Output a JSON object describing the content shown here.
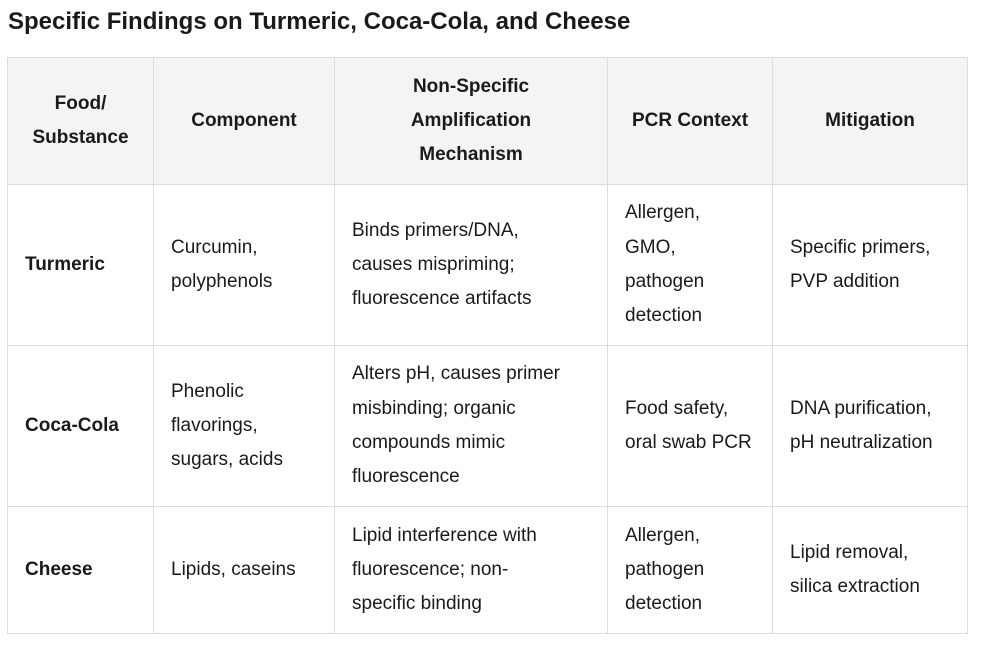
{
  "title": "Specific Findings on Turmeric, Coca-Cola, and Cheese",
  "columns": [
    [
      "Food/",
      "Substance"
    ],
    [
      "Component"
    ],
    [
      "Non-Specific",
      "Amplification",
      "Mechanism"
    ],
    [
      "PCR Context"
    ],
    [
      "Mitigation"
    ]
  ],
  "rows": [
    {
      "food": [
        "Turmeric"
      ],
      "component": [
        "Curcumin,",
        "polyphenols"
      ],
      "mechanism": [
        "Binds primers/DNA,",
        "causes mispriming;",
        "fluorescence artifacts"
      ],
      "context": [
        "Allergen,",
        "GMO,",
        "pathogen",
        "detection"
      ],
      "mitigation": [
        "Specific primers,",
        "PVP addition"
      ]
    },
    {
      "food": [
        "Coca-Cola"
      ],
      "component": [
        "Phenolic",
        "flavorings,",
        "sugars, acids"
      ],
      "mechanism": [
        "Alters pH, causes primer",
        "misbinding; organic",
        "compounds mimic",
        "fluorescence"
      ],
      "context": [
        "Food safety,",
        "oral swab PCR"
      ],
      "mitigation": [
        "DNA purification,",
        "pH neutralization"
      ]
    },
    {
      "food": [
        "Cheese"
      ],
      "component": [
        "Lipids, caseins"
      ],
      "mechanism": [
        "Lipid interference with",
        "fluorescence; non-",
        "specific binding"
      ],
      "context": [
        "Allergen,",
        "pathogen",
        "detection"
      ],
      "mitigation": [
        "Lipid removal,",
        "silica extraction"
      ]
    }
  ]
}
